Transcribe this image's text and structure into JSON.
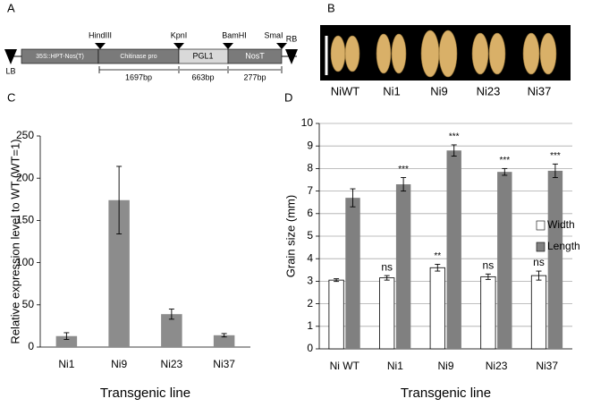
{
  "panels": [
    "A",
    "B",
    "C",
    "D"
  ],
  "construct": {
    "borders": [
      "LB",
      "RB"
    ],
    "sites": [
      "HindIII",
      "KpnI",
      "BamHI",
      "SmaI"
    ],
    "segments": [
      "35S::HPT-Nos(T)",
      "Chitinase pro",
      "PGL1",
      "NosT"
    ],
    "lengths": [
      "1697bp",
      "663bp",
      "277bp"
    ]
  },
  "photo": {
    "labels": [
      "NiWT",
      "Ni1",
      "Ni9",
      "Ni23",
      "Ni37"
    ]
  },
  "chart_data": [
    {
      "type": "bar",
      "y_label": "Relative expression level to WT (WT=1)",
      "x_label": "Transgenic line",
      "categories": [
        "Ni1",
        "Ni9",
        "Ni23",
        "Ni37"
      ],
      "values": [
        13,
        174,
        39,
        14
      ],
      "errors": [
        4,
        40,
        6,
        2
      ],
      "color": "#8c8c8c",
      "ylim": [
        0,
        250
      ],
      "yticks": [
        0,
        50,
        100,
        150,
        200,
        250
      ],
      "grid": false
    },
    {
      "type": "bar",
      "y_label": "Grain size (mm)",
      "x_label": "Transgenic line",
      "categories": [
        "Ni WT",
        "Ni1",
        "Ni9",
        "Ni23",
        "Ni37"
      ],
      "series": [
        {
          "name": "Width",
          "color": "#ffffff",
          "values": [
            3.05,
            3.15,
            3.6,
            3.2,
            3.25
          ],
          "errors": [
            0.06,
            0.1,
            0.15,
            0.12,
            0.2
          ],
          "annotations": [
            null,
            "ns",
            "**",
            "ns",
            "ns"
          ]
        },
        {
          "name": "Length",
          "color": "#808080",
          "values": [
            6.7,
            7.3,
            8.8,
            7.85,
            7.9
          ],
          "errors": [
            0.4,
            0.3,
            0.25,
            0.15,
            0.3
          ],
          "annotations": [
            null,
            "***",
            "***",
            "***",
            "***"
          ]
        }
      ],
      "ylim": [
        0,
        10
      ],
      "yticks": [
        0,
        1,
        2,
        3,
        4,
        5,
        6,
        7,
        8,
        9,
        10
      ],
      "grid": true,
      "legend": "right"
    }
  ]
}
